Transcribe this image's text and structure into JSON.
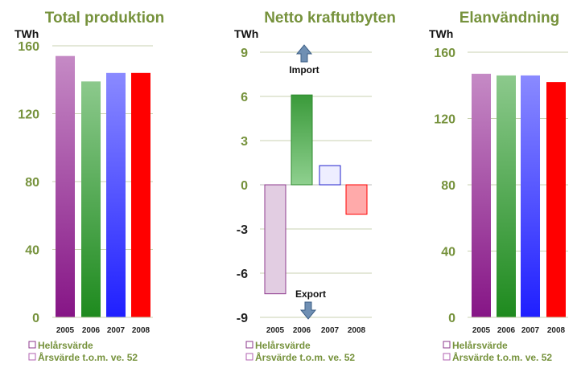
{
  "chart_data": [
    {
      "type": "bar",
      "title": "Total produktion",
      "unit": "TWh",
      "categories": [
        "2005",
        "2006",
        "2007",
        "2008"
      ],
      "values": [
        154,
        139,
        144,
        144
      ],
      "ylim": [
        0,
        160
      ],
      "yticks": [
        0,
        40,
        80,
        120,
        160
      ],
      "grid": true,
      "colors": [
        "#a64ca6",
        "#4caf50",
        "#5555ff",
        "#ff0000"
      ],
      "legend": [
        "Helårsvärde",
        "Årsvärde t.o.m. ve. 52"
      ]
    },
    {
      "type": "bar",
      "title": "Netto kraftutbyten",
      "unit": "TWh",
      "categories": [
        "2005",
        "2006",
        "2007",
        "2008"
      ],
      "values": [
        -7.4,
        6.1,
        1.3,
        -2.0
      ],
      "ylim": [
        -9,
        9
      ],
      "yticks": [
        -9,
        -6,
        -3,
        0,
        3,
        6,
        9
      ],
      "grid": true,
      "colors": [
        "#e2cde2",
        "#4caf50",
        "#eeeeff",
        "#ffaaaa"
      ],
      "annotations": [
        "Import",
        "Export"
      ],
      "legend": [
        "Helårsvärde",
        "Årsvärde t.o.m. ve. 52"
      ]
    },
    {
      "type": "bar",
      "title": "Elanvändning",
      "unit": "TWh",
      "categories": [
        "2005",
        "2006",
        "2007",
        "2008"
      ],
      "values": [
        147,
        146,
        146,
        142
      ],
      "ylim": [
        0,
        160
      ],
      "yticks": [
        0,
        40,
        80,
        120,
        160
      ],
      "grid": true,
      "colors": [
        "#a64ca6",
        "#4caf50",
        "#5555ff",
        "#ff0000"
      ],
      "legend": [
        "Helårsvärde",
        "Årsvärde t.o.m. ve. 52"
      ]
    }
  ]
}
